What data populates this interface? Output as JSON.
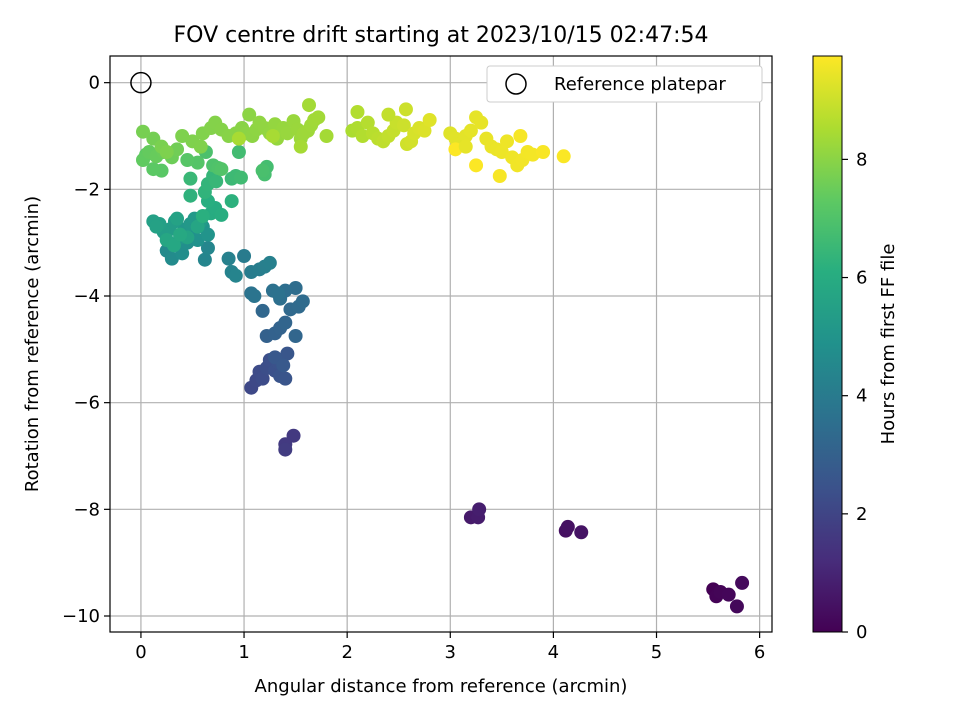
{
  "chart_data": {
    "type": "scatter",
    "title": "FOV centre drift starting at 2023/10/15 02:47:54",
    "xlabel": "Angular distance from reference (arcmin)",
    "ylabel": "Rotation from reference (arcmin)",
    "xlim": [
      -0.3,
      6.12
    ],
    "ylim": [
      -10.3,
      0.5
    ],
    "xticks": [
      0,
      1,
      2,
      3,
      4,
      5,
      6
    ],
    "yticks": [
      -10,
      -8,
      -6,
      -4,
      -2,
      0
    ],
    "xtick_labels": [
      "0",
      "1",
      "2",
      "3",
      "4",
      "5",
      "6"
    ],
    "ytick_labels": [
      "−10",
      "−8",
      "−6",
      "−4",
      "−2",
      "0"
    ],
    "grid": true,
    "legend": {
      "position": "top-right",
      "label": "Reference platepar"
    },
    "reference_point": {
      "x": 0,
      "y": 0
    },
    "colorbar": {
      "label": "Hours from first FF file",
      "range": [
        0,
        9.75
      ],
      "ticks": [
        0,
        2,
        4,
        6,
        8
      ],
      "tick_labels": [
        "0",
        "2",
        "4",
        "6",
        "8"
      ],
      "colormap": "viridis"
    },
    "series": [
      {
        "points": [
          [
            5.55,
            -9.5,
            0.0
          ],
          [
            5.58,
            -9.63,
            0.05
          ],
          [
            5.62,
            -9.55,
            0.1
          ],
          [
            5.7,
            -9.6,
            0.15
          ],
          [
            5.78,
            -9.82,
            0.2
          ],
          [
            5.83,
            -9.38,
            0.25
          ],
          [
            4.12,
            -8.4,
            0.4
          ],
          [
            4.14,
            -8.33,
            0.45
          ],
          [
            4.27,
            -8.43,
            0.5
          ],
          [
            3.2,
            -8.15,
            0.7
          ],
          [
            3.27,
            -8.15,
            0.75
          ],
          [
            3.28,
            -8.0,
            0.8
          ],
          [
            1.48,
            -6.62,
            1.6
          ],
          [
            1.4,
            -6.78,
            1.65
          ],
          [
            1.4,
            -6.88,
            1.7
          ],
          [
            1.07,
            -5.72,
            2.1
          ],
          [
            1.12,
            -5.58,
            2.15
          ],
          [
            1.15,
            -5.42,
            2.2
          ],
          [
            1.18,
            -5.55,
            2.25
          ],
          [
            1.22,
            -5.35,
            2.3
          ],
          [
            1.25,
            -5.2,
            2.35
          ],
          [
            1.3,
            -5.4,
            2.4
          ],
          [
            1.33,
            -5.25,
            2.45
          ],
          [
            1.35,
            -5.5,
            2.5
          ],
          [
            1.4,
            -5.55,
            2.55
          ],
          [
            1.42,
            -5.08,
            2.6
          ],
          [
            1.3,
            -5.15,
            2.65
          ],
          [
            1.38,
            -5.3,
            2.7
          ],
          [
            1.22,
            -4.75,
            3.0
          ],
          [
            1.3,
            -4.7,
            3.05
          ],
          [
            1.35,
            -4.6,
            3.1
          ],
          [
            1.4,
            -4.5,
            3.15
          ],
          [
            1.5,
            -4.75,
            3.2
          ],
          [
            1.18,
            -4.28,
            3.25
          ],
          [
            1.45,
            -4.25,
            3.3
          ],
          [
            1.53,
            -4.2,
            3.35
          ],
          [
            1.57,
            -4.1,
            3.4
          ],
          [
            1.5,
            -3.85,
            3.45
          ],
          [
            1.4,
            -3.9,
            3.5
          ],
          [
            1.35,
            -4.05,
            3.55
          ],
          [
            1.28,
            -3.9,
            3.6
          ],
          [
            1.33,
            -3.95,
            3.65
          ],
          [
            1.07,
            -3.95,
            3.7
          ],
          [
            1.1,
            -4.0,
            3.75
          ],
          [
            1.0,
            -3.25,
            4.0
          ],
          [
            1.07,
            -3.55,
            4.05
          ],
          [
            1.15,
            -3.5,
            4.1
          ],
          [
            1.2,
            -3.45,
            4.15
          ],
          [
            1.25,
            -3.38,
            4.2
          ],
          [
            0.85,
            -3.3,
            4.25
          ],
          [
            0.88,
            -3.55,
            4.3
          ],
          [
            0.92,
            -3.62,
            4.35
          ],
          [
            0.62,
            -3.32,
            4.4
          ],
          [
            0.65,
            -3.1,
            4.45
          ],
          [
            0.25,
            -3.15,
            4.6
          ],
          [
            0.3,
            -3.3,
            4.65
          ],
          [
            0.35,
            -3.05,
            4.7
          ],
          [
            0.4,
            -3.2,
            4.75
          ],
          [
            0.45,
            -3.0,
            4.8
          ],
          [
            0.5,
            -2.8,
            4.85
          ],
          [
            0.55,
            -2.95,
            4.9
          ],
          [
            0.6,
            -2.7,
            4.95
          ],
          [
            0.65,
            -2.85,
            5.0
          ],
          [
            0.38,
            -2.9,
            5.05
          ],
          [
            0.42,
            -2.75,
            5.1
          ],
          [
            0.48,
            -2.65,
            5.15
          ],
          [
            0.52,
            -2.55,
            5.2
          ],
          [
            0.58,
            -2.6,
            5.25
          ],
          [
            0.33,
            -2.6,
            5.3
          ],
          [
            0.28,
            -2.75,
            5.35
          ],
          [
            0.22,
            -2.8,
            5.4
          ],
          [
            0.18,
            -2.65,
            5.45
          ],
          [
            0.12,
            -2.6,
            5.5
          ],
          [
            0.15,
            -2.7,
            5.55
          ],
          [
            0.35,
            -2.55,
            5.6
          ],
          [
            0.45,
            -2.9,
            5.65
          ],
          [
            0.55,
            -2.7,
            5.7
          ],
          [
            0.25,
            -2.95,
            5.75
          ],
          [
            0.32,
            -3.05,
            5.8
          ],
          [
            0.38,
            -2.85,
            5.85
          ],
          [
            0.68,
            -2.45,
            5.95
          ],
          [
            0.72,
            -2.35,
            6.0
          ],
          [
            0.78,
            -2.48,
            6.05
          ],
          [
            0.65,
            -2.22,
            6.1
          ],
          [
            0.6,
            -2.5,
            6.15
          ],
          [
            0.88,
            -2.22,
            6.2
          ],
          [
            0.48,
            -2.12,
            6.25
          ],
          [
            0.62,
            -2.05,
            6.3
          ],
          [
            0.65,
            -1.9,
            6.35
          ],
          [
            0.7,
            -1.75,
            6.4
          ],
          [
            0.73,
            -1.85,
            6.45
          ],
          [
            0.48,
            -1.8,
            6.5
          ],
          [
            0.88,
            -1.8,
            6.55
          ],
          [
            0.92,
            -1.75,
            6.6
          ],
          [
            0.97,
            -1.78,
            6.65
          ],
          [
            0.95,
            -1.3,
            6.7
          ],
          [
            1.22,
            -1.58,
            6.75
          ],
          [
            1.2,
            -1.72,
            6.8
          ],
          [
            1.18,
            -1.65,
            6.85
          ],
          [
            0.63,
            -1.3,
            6.9
          ],
          [
            0.7,
            -1.55,
            6.95
          ],
          [
            0.75,
            -1.6,
            7.0
          ],
          [
            0.78,
            -1.62,
            7.05
          ],
          [
            0.55,
            -1.5,
            7.1
          ],
          [
            0.45,
            -1.45,
            7.15
          ],
          [
            0.2,
            -1.65,
            7.2
          ],
          [
            0.12,
            -1.62,
            7.25
          ],
          [
            0.05,
            -1.35,
            7.3
          ],
          [
            0.02,
            -1.45,
            7.35
          ],
          [
            0.08,
            -1.3,
            7.4
          ],
          [
            0.15,
            -1.38,
            7.45
          ],
          [
            0.22,
            -1.3,
            7.5
          ],
          [
            0.3,
            -1.4,
            7.55
          ],
          [
            0.35,
            -1.25,
            7.6
          ],
          [
            0.12,
            -1.05,
            7.65
          ],
          [
            0.02,
            -0.92,
            7.7
          ],
          [
            0.2,
            -1.2,
            7.75
          ],
          [
            0.25,
            -1.3,
            7.8
          ],
          [
            0.4,
            -1.0,
            7.8
          ],
          [
            0.5,
            -1.1,
            7.82
          ],
          [
            0.58,
            -1.2,
            7.84
          ],
          [
            0.6,
            -0.95,
            7.86
          ],
          [
            0.68,
            -0.85,
            7.88
          ],
          [
            0.72,
            -0.75,
            7.9
          ],
          [
            0.78,
            -0.88,
            7.92
          ],
          [
            0.85,
            -1.0,
            7.94
          ],
          [
            0.92,
            -0.95,
            7.96
          ],
          [
            0.98,
            -0.85,
            7.98
          ],
          [
            1.02,
            -0.95,
            8.0
          ],
          [
            1.05,
            -0.6,
            8.02
          ],
          [
            1.08,
            -1.0,
            8.04
          ],
          [
            1.12,
            -0.88,
            8.06
          ],
          [
            1.15,
            -0.75,
            8.08
          ],
          [
            1.2,
            -0.85,
            8.1
          ],
          [
            1.25,
            -0.95,
            8.12
          ],
          [
            1.3,
            -0.78,
            8.14
          ],
          [
            1.32,
            -1.05,
            8.16
          ],
          [
            1.38,
            -0.85,
            8.18
          ],
          [
            1.42,
            -0.95,
            8.2
          ],
          [
            1.48,
            -0.72,
            8.22
          ],
          [
            1.52,
            -0.88,
            8.24
          ],
          [
            1.55,
            -1.05,
            8.26
          ],
          [
            1.58,
            -0.95,
            8.28
          ],
          [
            1.62,
            -0.9,
            8.3
          ],
          [
            1.65,
            -0.8,
            8.32
          ],
          [
            1.68,
            -0.7,
            8.34
          ],
          [
            1.72,
            -0.65,
            8.36
          ],
          [
            1.63,
            -0.42,
            8.38
          ],
          [
            1.8,
            -1.0,
            8.4
          ],
          [
            1.55,
            -1.2,
            8.42
          ],
          [
            1.28,
            -1.0,
            8.44
          ],
          [
            0.95,
            -1.05,
            8.46
          ],
          [
            2.05,
            -0.9,
            8.5
          ],
          [
            2.1,
            -0.85,
            8.55
          ],
          [
            2.15,
            -1.0,
            8.6
          ],
          [
            2.2,
            -0.75,
            8.65
          ],
          [
            2.25,
            -0.95,
            8.7
          ],
          [
            2.3,
            -1.05,
            8.75
          ],
          [
            2.35,
            -1.1,
            8.8
          ],
          [
            2.4,
            -1.0,
            8.85
          ],
          [
            2.45,
            -0.9,
            8.9
          ],
          [
            2.48,
            -0.75,
            8.95
          ],
          [
            2.55,
            -0.8,
            9.0
          ],
          [
            2.58,
            -1.15,
            9.05
          ],
          [
            2.62,
            -1.1,
            9.1
          ],
          [
            2.65,
            -0.95,
            9.15
          ],
          [
            2.7,
            -0.85,
            9.2
          ],
          [
            2.75,
            -0.9,
            9.25
          ],
          [
            2.8,
            -0.7,
            9.3
          ],
          [
            2.1,
            -0.55,
            8.6
          ],
          [
            2.4,
            -0.6,
            8.85
          ],
          [
            2.57,
            -0.5,
            9.0
          ],
          [
            3.0,
            -0.95,
            9.3
          ],
          [
            3.05,
            -1.05,
            9.32
          ],
          [
            3.1,
            -1.15,
            9.34
          ],
          [
            3.15,
            -1.0,
            9.36
          ],
          [
            3.2,
            -0.9,
            9.38
          ],
          [
            3.25,
            -0.65,
            9.4
          ],
          [
            3.3,
            -0.75,
            9.42
          ],
          [
            3.35,
            -1.05,
            9.44
          ],
          [
            3.4,
            -1.2,
            9.46
          ],
          [
            3.45,
            -1.25,
            9.48
          ],
          [
            3.5,
            -1.3,
            9.5
          ],
          [
            3.55,
            -1.1,
            9.52
          ],
          [
            3.6,
            -1.4,
            9.54
          ],
          [
            3.65,
            -1.55,
            9.56
          ],
          [
            3.7,
            -1.45,
            9.58
          ],
          [
            3.75,
            -1.3,
            9.6
          ],
          [
            3.8,
            -1.35,
            9.62
          ],
          [
            3.68,
            -1.0,
            9.64
          ],
          [
            3.48,
            -1.75,
            9.66
          ],
          [
            3.9,
            -1.3,
            9.68
          ],
          [
            4.1,
            -1.38,
            9.7
          ],
          [
            3.25,
            -1.55,
            9.72
          ],
          [
            3.05,
            -1.25,
            9.74
          ],
          [
            3.15,
            -1.2,
            9.4
          ]
        ]
      }
    ]
  }
}
